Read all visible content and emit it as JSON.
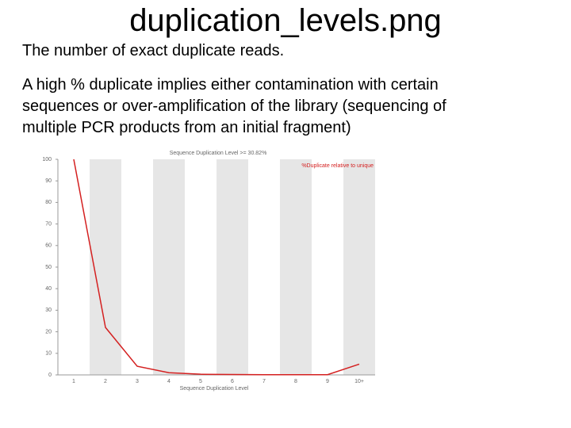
{
  "slide": {
    "title": "duplication_levels.png",
    "subtitle": "The number of exact duplicate reads.",
    "lines": [
      "A high % duplicate implies either contamination with certain",
      "sequences or over-amplification of the library (sequencing of",
      "multiple PCR products from an initial fragment)"
    ]
  },
  "chart_data": {
    "type": "line",
    "title": "Sequence Duplication Level >= 30.82%",
    "x_label": "Sequence Duplication Level",
    "categories": [
      "1",
      "2",
      "3",
      "4",
      "5",
      "6",
      "7",
      "8",
      "9",
      "10+"
    ],
    "series": [
      {
        "name": "%Duplicate relative to unique",
        "color": "#d42020",
        "values": [
          100,
          22,
          4,
          1,
          0.3,
          0.2,
          0.1,
          0.1,
          0.1,
          5
        ]
      }
    ],
    "ylim": [
      0,
      100
    ],
    "yticks": [
      0,
      10,
      20,
      30,
      40,
      50,
      60,
      70,
      80,
      90,
      100
    ],
    "banded": true
  }
}
